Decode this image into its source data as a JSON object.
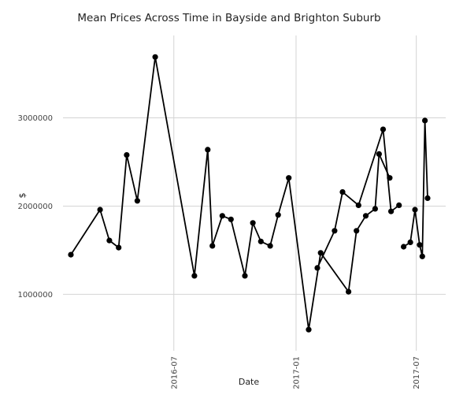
{
  "chart_data": {
    "type": "line",
    "title": "Mean Prices Across Time in  Bayside and Brighton Suburb",
    "xlabel": "Date",
    "ylabel": "$",
    "x_ticks": [
      {
        "label": "2016-07",
        "date": "2016-07-01"
      },
      {
        "label": "2017-01",
        "date": "2017-01-01"
      },
      {
        "label": "2017-07",
        "date": "2017-07-01"
      }
    ],
    "y_ticks": [
      {
        "label": "1000000",
        "value": 1000000
      },
      {
        "label": "2000000",
        "value": 2000000
      },
      {
        "label": "3000000",
        "value": 3000000
      }
    ],
    "xlim": [
      "2016-01-28",
      "2017-07-18"
    ],
    "ylim": [
      450000,
      3800000
    ],
    "grid": true,
    "line_color": "#000000",
    "series": [
      {
        "segments": [
          [
            {
              "x": "2016-01-28",
              "y": 1450000
            },
            {
              "x": "2016-03-12",
              "y": 1960000
            },
            {
              "x": "2016-03-26",
              "y": 1610000
            },
            {
              "x": "2016-04-09",
              "y": 1530000
            },
            {
              "x": "2016-04-21",
              "y": 2580000
            },
            {
              "x": "2016-05-07",
              "y": 2060000
            },
            {
              "x": "2016-06-03",
              "y": 3690000
            },
            {
              "x": "2016-08-01",
              "y": 1210000
            },
            {
              "x": "2016-08-21",
              "y": 2640000
            },
            {
              "x": "2016-08-28",
              "y": 1550000
            },
            {
              "x": "2016-09-12",
              "y": 1890000
            },
            {
              "x": "2016-09-25",
              "y": 1850000
            },
            {
              "x": "2016-10-16",
              "y": 1210000
            },
            {
              "x": "2016-10-28",
              "y": 1810000
            },
            {
              "x": "2016-11-09",
              "y": 1600000
            },
            {
              "x": "2016-11-23",
              "y": 1550000
            },
            {
              "x": "2016-12-05",
              "y": 1900000
            },
            {
              "x": "2016-12-21",
              "y": 2320000
            },
            {
              "x": "2017-01-20",
              "y": 600000
            },
            {
              "x": "2017-02-07",
              "y": 1470000
            },
            {
              "x": "2017-03-21",
              "y": 1030000
            },
            {
              "x": "2017-04-02",
              "y": 1720000
            },
            {
              "x": "2017-04-16",
              "y": 1890000
            },
            {
              "x": "2017-04-30",
              "y": 1970000
            },
            {
              "x": "2017-05-06",
              "y": 2590000
            },
            {
              "x": "2017-05-22",
              "y": 2320000
            }
          ],
          [
            {
              "x": "2017-02-02",
              "y": 1300000
            },
            {
              "x": "2017-02-28",
              "y": 1720000
            },
            {
              "x": "2017-03-12",
              "y": 2160000
            },
            {
              "x": "2017-04-05",
              "y": 2010000
            },
            {
              "x": "2017-05-12",
              "y": 2870000
            },
            {
              "x": "2017-05-24",
              "y": 1940000
            },
            {
              "x": "2017-06-05",
              "y": 2010000
            }
          ],
          [
            {
              "x": "2017-06-12",
              "y": 1540000
            },
            {
              "x": "2017-06-22",
              "y": 1590000
            },
            {
              "x": "2017-06-29",
              "y": 1960000
            },
            {
              "x": "2017-07-06",
              "y": 1560000
            },
            {
              "x": "2017-07-10",
              "y": 1430000
            },
            {
              "x": "2017-07-14",
              "y": 2970000
            },
            {
              "x": "2017-07-18",
              "y": 2090000
            }
          ]
        ]
      }
    ]
  }
}
